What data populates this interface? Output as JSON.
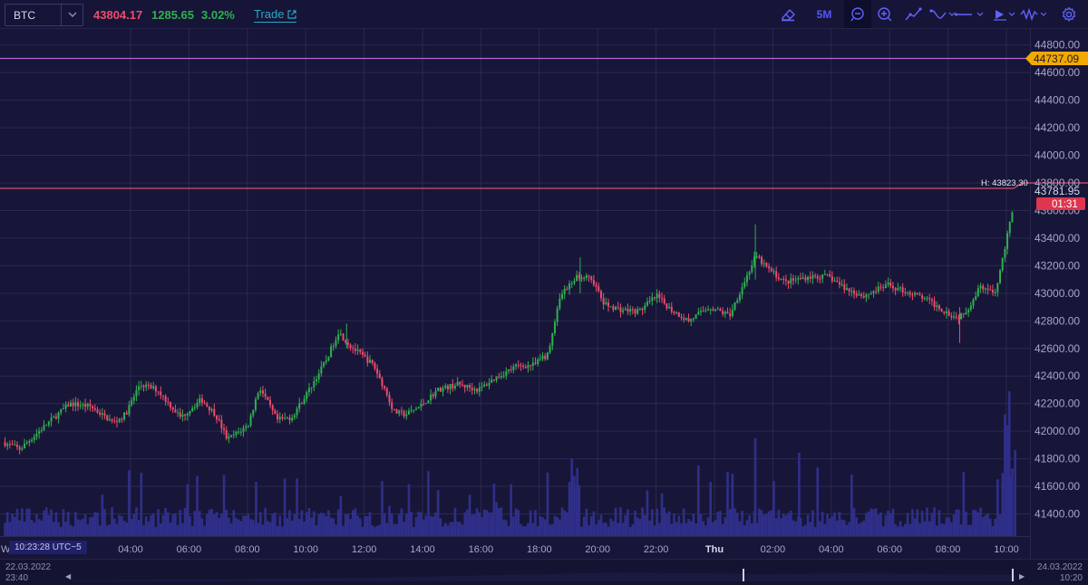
{
  "toolbar": {
    "symbol": "BTC",
    "price": "43804.17",
    "change": "1285.65",
    "change_pct": "3.02%",
    "trade_label": "Trade",
    "timeframe": "5M",
    "icons": [
      "eraser-icon",
      "chat-icon",
      "zoom-icon",
      "trendline-icon",
      "curve-icon",
      "hline-icon",
      "arrow-icon",
      "waveform-icon",
      "gear-icon"
    ]
  },
  "chart": {
    "y_labels": [
      "44800.00",
      "44600.00",
      "44400.00",
      "44200.00",
      "44000.00",
      "43800.00",
      "43600.00",
      "43400.00",
      "43200.00",
      "43000.00",
      "42800.00",
      "42600.00",
      "42400.00",
      "42200.00",
      "42000.00",
      "41800.00",
      "41600.00",
      "41400.00"
    ],
    "x_labels": [
      "04:00",
      "06:00",
      "08:00",
      "10:00",
      "12:00",
      "14:00",
      "16:00",
      "18:00",
      "20:00",
      "22:00",
      "Thu",
      "02:00",
      "04:00",
      "06:00",
      "08:00",
      "10:00"
    ],
    "x_first_fragment": "W",
    "purple_line_value": "44737.09",
    "current_price_label": "43781.95",
    "countdown": "01:31",
    "high_label": "H: 43823.30",
    "time_label": "10:23:28 UTC−5"
  },
  "colors": {
    "background": "#171638",
    "grid": "#2a2950",
    "up": "#2fb04f",
    "down": "#ef4b6c",
    "volume": "#2f2f8a",
    "purple_line": "#b463d8",
    "red_line": "#d8506a",
    "price_badge": "#e0354f",
    "level_badge": "#f2a900"
  },
  "navigator": {
    "start_date": "22.03.2022",
    "start_time": "23:40",
    "end_date": "24.03.2022",
    "end_time": "10:20"
  }
}
